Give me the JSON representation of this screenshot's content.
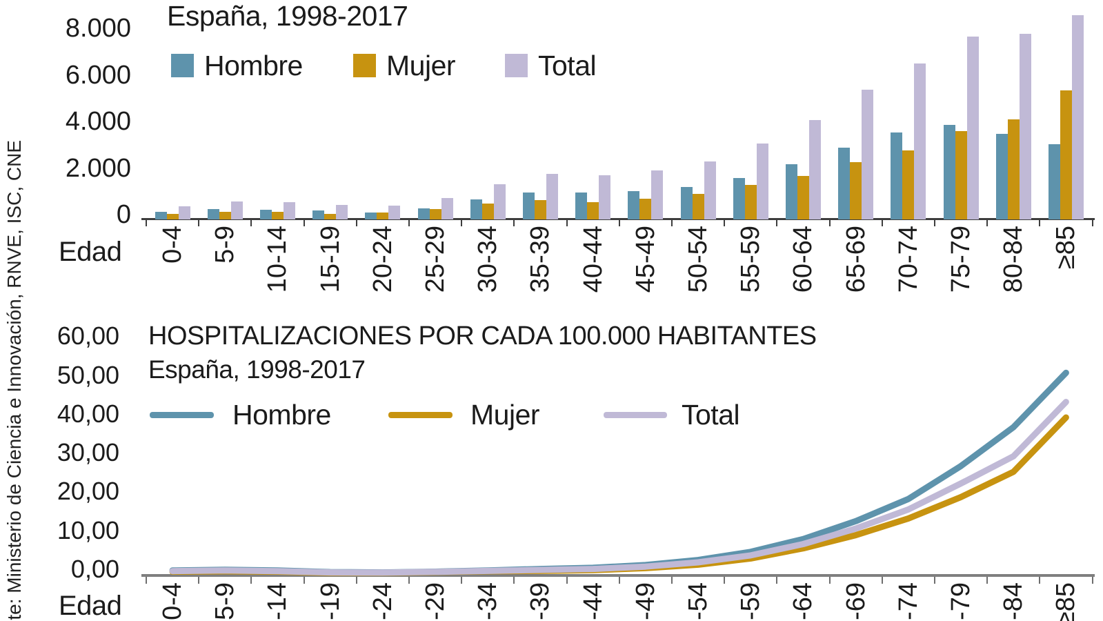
{
  "source_note": "nte: Ministerio de Ciencia e Innovación, RNVE, ISC, CNE",
  "categories": [
    "0-4",
    "5-9",
    "10-14",
    "15-19",
    "20-24",
    "25-29",
    "30-34",
    "35-39",
    "40-44",
    "45-49",
    "50-54",
    "55-59",
    "60-64",
    "65-69",
    "70-74",
    "75-79",
    "80-84",
    "≥85"
  ],
  "colors": {
    "hombre": "#5e93ac",
    "mujer": "#c79310",
    "total": "#c0b9d6",
    "text": "#1b1b1b",
    "axis_top": "#3d3d3d",
    "axis_bottom": "#7f7f7f"
  },
  "chart_data": [
    {
      "type": "bar",
      "title": "España, 1998-2017",
      "xlabel": "Edad",
      "ylabel": "",
      "ylim": [
        0,
        8000
      ],
      "grid": false,
      "legend_position": "top-left-inside",
      "yticks": [
        {
          "value": 0,
          "label": "0"
        },
        {
          "value": 2000,
          "label": "2.000"
        },
        {
          "value": 4000,
          "label": "4.000"
        },
        {
          "value": 6000,
          "label": "6.000"
        },
        {
          "value": 8000,
          "label": "8.000"
        }
      ],
      "series": [
        {
          "name": "Hombre",
          "color": "#5e93ac",
          "values": [
            320,
            440,
            420,
            385,
            310,
            470,
            850,
            1165,
            1155,
            1220,
            1385,
            1780,
            2370,
            3090,
            3720,
            4050,
            3670,
            3230
          ]
        },
        {
          "name": "Mujer",
          "color": "#c79310",
          "values": [
            250,
            325,
            320,
            250,
            290,
            435,
            680,
            815,
            740,
            890,
            1090,
            1480,
            1875,
            2470,
            2960,
            3800,
            4300,
            5550
          ]
        },
        {
          "name": "Total",
          "color": "#c0b9d6",
          "values": [
            575,
            770,
            740,
            625,
            600,
            905,
            1525,
            1950,
            1895,
            2105,
            2475,
            3255,
            4255,
            5560,
            6690,
            7855,
            7975,
            8785
          ]
        }
      ]
    },
    {
      "type": "line",
      "title": "HOSPITALIZACIONES POR CADA 100.000 HABITANTES",
      "subtitle": "España, 1998-2017",
      "xlabel": "Edad",
      "ylabel": "",
      "ylim": [
        0,
        60
      ],
      "grid": false,
      "legend_position": "top-left-inside",
      "yticks": [
        {
          "value": 0,
          "label": "0,00"
        },
        {
          "value": 10,
          "label": "10,00"
        },
        {
          "value": 20,
          "label": "20,00"
        },
        {
          "value": 30,
          "label": "30,00"
        },
        {
          "value": 40,
          "label": "40,00"
        },
        {
          "value": 50,
          "label": "50,00"
        },
        {
          "value": 60,
          "label": "60,00"
        }
      ],
      "series": [
        {
          "name": "Hombre",
          "color": "#5e93ac",
          "values": [
            1.1,
            1.3,
            1.1,
            0.7,
            0.6,
            0.8,
            1.1,
            1.5,
            1.8,
            2.5,
            3.8,
            5.9,
            9.2,
            13.8,
            19.5,
            28.0,
            38.0,
            52.0
          ]
        },
        {
          "name": "Mujer",
          "color": "#c79310",
          "values": [
            0.8,
            0.9,
            0.8,
            0.5,
            0.5,
            0.7,
            0.9,
            1.0,
            1.2,
            1.7,
            2.6,
            4.2,
            6.8,
            10.2,
            14.5,
            20.0,
            26.5,
            40.5
          ]
        },
        {
          "name": "Total",
          "color": "#c0b9d6",
          "values": [
            0.95,
            1.1,
            0.95,
            0.6,
            0.55,
            0.75,
            1.0,
            1.25,
            1.5,
            2.1,
            3.2,
            5.0,
            7.9,
            11.9,
            16.8,
            23.5,
            30.5,
            44.5
          ]
        }
      ]
    }
  ]
}
